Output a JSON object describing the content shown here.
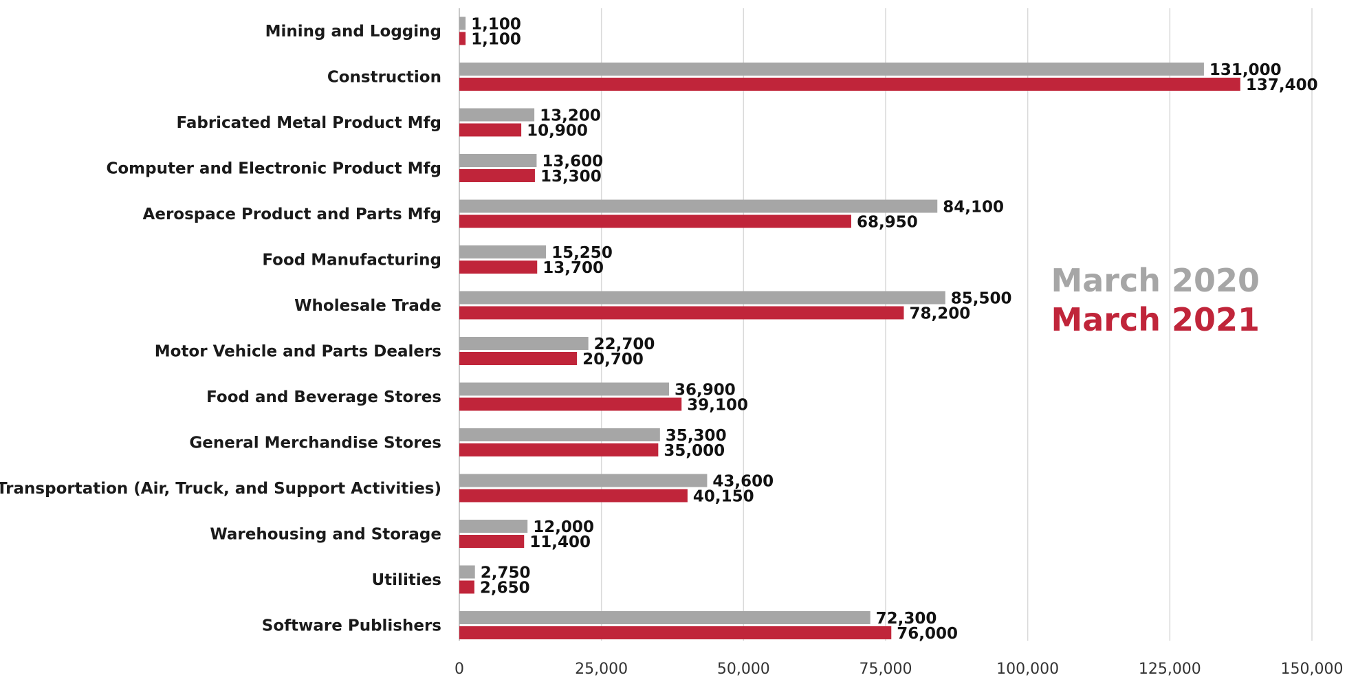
{
  "chart_data": {
    "type": "bar",
    "orientation": "horizontal",
    "title": "",
    "xlabel": "",
    "ylabel": "",
    "xlim": [
      0,
      150000
    ],
    "xticks": [
      0,
      25000,
      50000,
      75000,
      100000,
      125000,
      150000
    ],
    "xtick_labels": [
      "0",
      "25,000",
      "50,000",
      "75,000",
      "100,000",
      "125,000",
      "150,000"
    ],
    "grid": "vertical",
    "legend_position": "right",
    "categories": [
      "Mining and Logging",
      "Construction",
      "Fabricated Metal Product Mfg",
      "Computer and Electronic Product Mfg",
      "Aerospace Product and Parts Mfg",
      "Food Manufacturing",
      "Wholesale Trade",
      "Motor Vehicle and Parts Dealers",
      "Food and Beverage Stores",
      "General Merchandise Stores",
      "Transportation (Air, Truck, and Support Activities)",
      "Warehousing and Storage",
      "Utilities",
      "Software Publishers"
    ],
    "series": [
      {
        "name": "March 2020",
        "color": "#a6a6a6",
        "values": [
          1100,
          131000,
          13200,
          13600,
          84100,
          15250,
          85500,
          22700,
          36900,
          35300,
          43600,
          12000,
          2750,
          72300
        ],
        "labels": [
          "1,100",
          "131,000",
          "13,200",
          "13,600",
          "84,100",
          "15,250",
          "85,500",
          "22,700",
          "36,900",
          "35,300",
          "43,600",
          "12,000",
          "2,750",
          "72,300"
        ]
      },
      {
        "name": "March 2021",
        "color": "#c0253a",
        "values": [
          1100,
          137400,
          10900,
          13300,
          68950,
          13700,
          78200,
          20700,
          39100,
          35000,
          40150,
          11400,
          2650,
          76000
        ],
        "labels": [
          "1,100",
          "137,400",
          "10,900",
          "13,300",
          "68,950",
          "13,700",
          "78,200",
          "20,700",
          "39,100",
          "35,000",
          "40,150",
          "11,400",
          "2,650",
          "76,000"
        ]
      }
    ]
  }
}
